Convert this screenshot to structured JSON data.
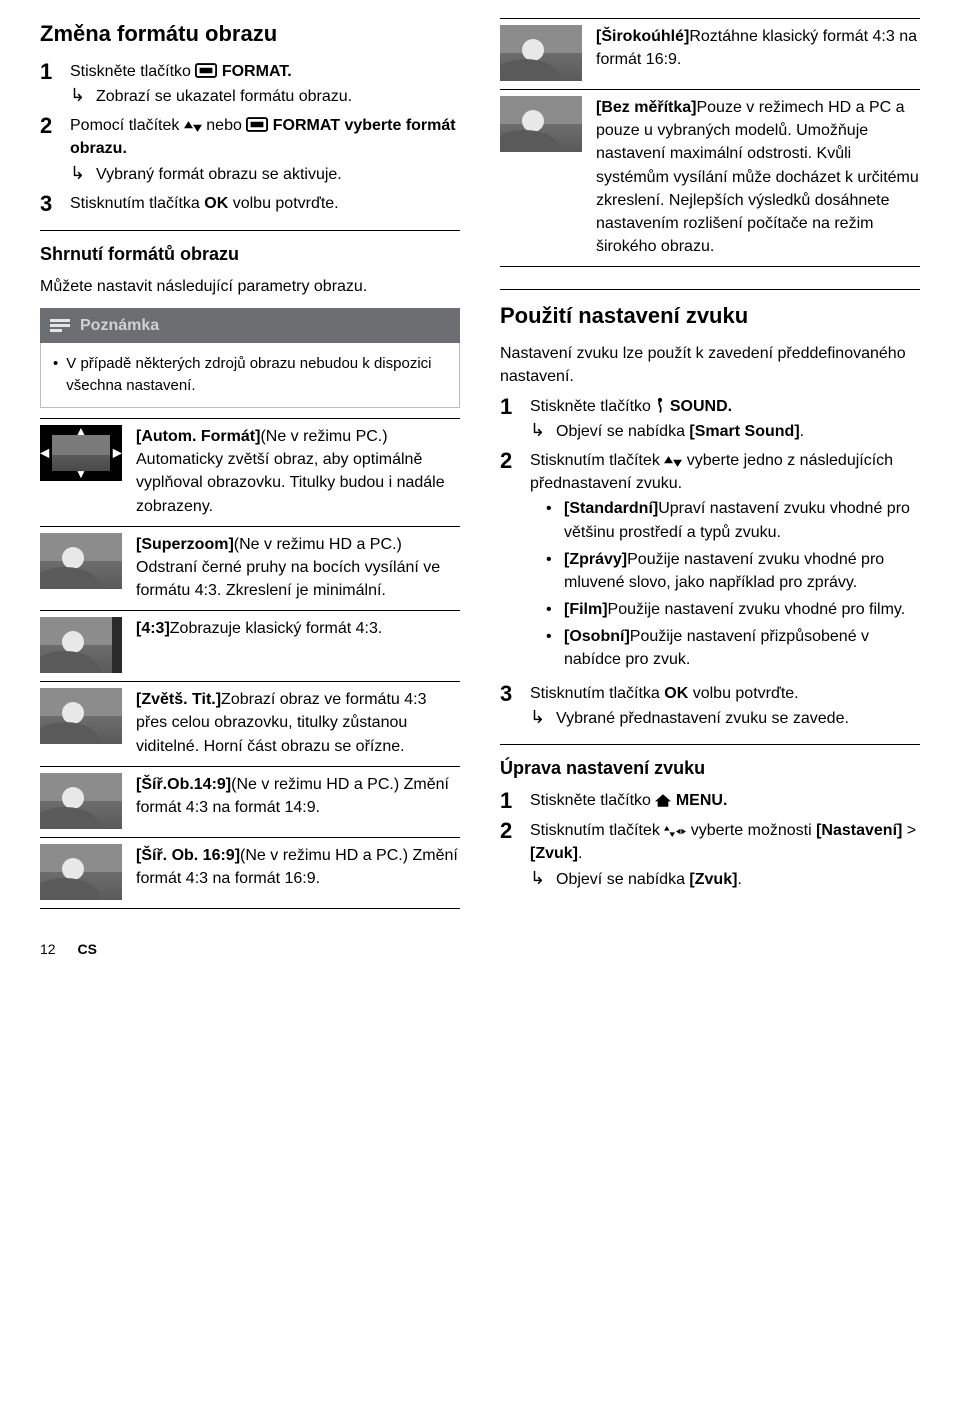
{
  "left_top": {
    "heading": "Změna formátu obrazu",
    "steps": [
      {
        "num": "1",
        "text_a": "Stiskněte tlačítko ",
        "icon": "format",
        "text_b": " FORMAT.",
        "sub": "Zobrazí se ukazatel formátu obrazu."
      },
      {
        "num": "2",
        "text_a": "Pomocí tlačítek ",
        "icon": "updown",
        "text_b": " nebo ",
        "icon2": "format",
        "text_c": " FORMAT vyberte formát obrazu.",
        "sub": "Vybraný formát obrazu se aktivuje."
      },
      {
        "num": "3",
        "text_a": "Stisknutím tlačítka ",
        "bold": "OK",
        "text_b": " volbu potvrďte."
      }
    ]
  },
  "summary": {
    "heading": "Shrnutí formátů obrazu",
    "intro": "Můžete nastavit následující parametry obrazu.",
    "note_label": "Poznámka",
    "note_text": "V případě některých zdrojů obrazu nebudou k dispozici všechna nastavení."
  },
  "formats_left": [
    {
      "icon": "auto",
      "title": "[Autom. Formát]",
      "body": "(Ne v režimu PC.) Automaticky zvětší obraz, aby optimálně vyplňoval obrazovku. Titulky budou i nadále zobrazeny."
    },
    {
      "icon": "generic",
      "title": "[Superzoom]",
      "body": "(Ne v režimu HD a PC.) Odstraní černé pruhy na bocích vysílání ve formátu 4:3. Zkreslení je minimální."
    },
    {
      "icon": "narrow",
      "title": "[4:3]",
      "body": "Zobrazuje klasický formát 4:3."
    },
    {
      "icon": "generic",
      "title": "[Zvětš. Tit.]",
      "body": "Zobrazí obraz ve formátu 4:3 přes celou obrazovku, titulky zůstanou viditelné. Horní část obrazu se ořízne."
    },
    {
      "icon": "generic",
      "title": "[Šíř.Ob.14:9]",
      "body": "(Ne v režimu HD a PC.) Změní formát 4:3 na formát 14:9."
    },
    {
      "icon": "generic",
      "title": "[Šíř. Ob. 16:9]",
      "body": "(Ne v režimu HD a PC.) Změní formát 4:3 na formát 16:9."
    }
  ],
  "formats_right_top": [
    {
      "icon": "generic",
      "title": "[Širokoúhlé]",
      "body": "Roztáhne klasický formát 4:3 na formát 16:9."
    },
    {
      "icon": "generic",
      "title": "[Bez měřítka]",
      "body": "Pouze v režimech HD a PC a pouze u vybraných modelů. Umožňuje nastavení maximální odstrosti. Kvůli systémům vysílání může docházet k určitému zkreslení. Nejlepších výsledků dosáhnete nastavením rozlišení počítače na režim širokého obrazu."
    }
  ],
  "sound_use": {
    "heading": "Použití nastavení zvuku",
    "intro": "Nastavení zvuku lze použít k zavedení předdefinovaného nastavení.",
    "step1_a": "Stiskněte tlačítko ",
    "step1_b": " SOUND.",
    "step1_sub_a": "Objeví se nabídka ",
    "step1_sub_b": "[Smart Sound]",
    "step1_sub_c": ".",
    "step2_a": "Stisknutím tlačítek ",
    "step2_b": " vyberte jedno z následujících přednastavení zvuku.",
    "presets": [
      {
        "title": "[Standardní]",
        "body": "Upraví nastavení zvuku vhodné pro většinu prostředí a typů zvuku."
      },
      {
        "title": "[Zprávy]",
        "body": "Použije nastavení zvuku vhodné pro mluvené slovo, jako například pro zprávy."
      },
      {
        "title": "[Film]",
        "body": "Použije nastavení zvuku vhodné pro filmy."
      },
      {
        "title": "[Osobní]",
        "body": "Použije nastavení přizpůsobené v nabídce pro zvuk."
      }
    ],
    "step3_a": "Stisknutím tlačítka ",
    "step3_bold": "OK",
    "step3_b": " volbu potvrďte.",
    "step3_sub": "Vybrané přednastavení zvuku se zavede."
  },
  "sound_adj": {
    "heading": "Úprava nastavení zvuku",
    "step1_a": "Stiskněte tlačítko ",
    "step1_b": " MENU.",
    "step2_a": "Stisknutím tlačítek ",
    "step2_b": " vyberte možnosti ",
    "step2_c": "[Nastavení]",
    "step2_d": " > ",
    "step2_e": "[Zvuk]",
    "step2_f": ".",
    "step2_sub_a": "Objeví se nabídka ",
    "step2_sub_b": "[Zvuk]",
    "step2_sub_c": "."
  },
  "footer": {
    "page": "12",
    "lang": "CS"
  }
}
